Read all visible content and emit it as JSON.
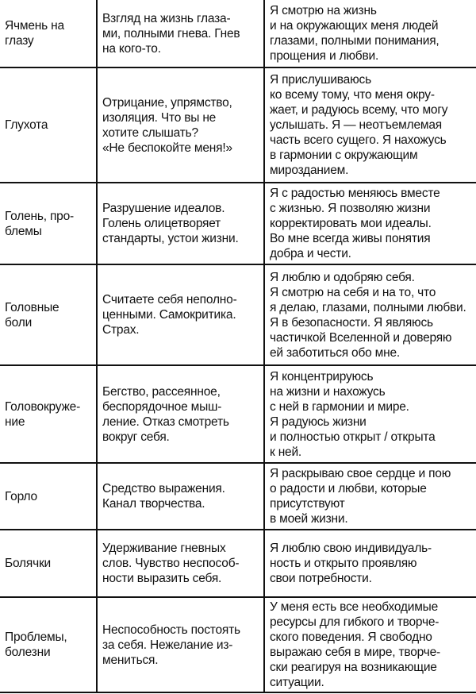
{
  "rows": [
    {
      "problem": "Ячмень на\nглазу",
      "cause": "Взгляд на жизнь глаза-\nми, полными гнева. Гнев\nна кого-то.",
      "affirmation": "Я смотрю на жизнь\nи на окружающих меня людей\nглазами, полными понимания,\nпрощения и любви."
    },
    {
      "problem": "Глухота",
      "cause": "Отрицание, упрямство,\nизоляция. Что вы не\nхотите слышать?\n«Не беспокойте меня!»",
      "affirmation": "Я прислушиваюсь\nко всему тому, что меня окру-\nжает, и радуюсь всему, что могу\nуслышать. Я — неотъемлемая\nчасть всего сущего. Я нахожусь\nв гармонии с окружающим\nмирозданием."
    },
    {
      "problem": "Голень, про-\nблемы",
      "cause": "Разрушение идеалов.\nГолень олицетворяет\nстандарты, устои жизни.",
      "affirmation": "Я с радостью меняюсь вместе\nс жизнью. Я позволяю жизни\nкорректировать мои идеалы.\nВо мне всегда живы понятия\nдобра и чести."
    },
    {
      "problem": "Головные\nболи",
      "cause": "Считаете себя неполно-\nценными. Самокритика.\nСтрах.",
      "affirmation": "Я люблю и одобряю себя.\nЯ смотрю на себя и на то, что\nя делаю, глазами, полными любви.\nЯ в безопасности. Я являюсь\nчастичкой Вселенной и доверяю\nей заботиться обо мне."
    },
    {
      "problem": "Головокруже-\nние",
      "cause": "Бегство, рассеянное,\nбеспорядочное мыш-\nление. Отказ смотреть\nвокруг себя.",
      "affirmation": "Я концентрируюсь\nна жизни и нахожусь\nс ней в гармонии и мире.\nЯ радуюсь жизни\nи полностью открыт / открыта\nк ней."
    },
    {
      "problem": "Горло",
      "cause": "Средство выражения.\nКанал творчества.",
      "affirmation": "Я раскрываю свое сердце и пою\nо радости и любви, которые\nприсутствуют\nв моей жизни."
    },
    {
      "problem": "Болячки",
      "cause": "Удерживание гневных\nслов. Чувство неспособ-\nности выразить себя.",
      "affirmation": "Я люблю свою индивидуаль-\nность и открыто проявляю\nсвои потребности."
    },
    {
      "problem": "Проблемы,\nболезни",
      "cause": "Неспособность постоять\nза себя. Нежелание из-\nмениться.",
      "affirmation": "У меня есть все необходимые\nресурсы для гибкого и творче-\nского поведения.  Я свободно\nвыражаю себя в мире, творче-\nски реагируя на возникающие\nситуации."
    }
  ]
}
